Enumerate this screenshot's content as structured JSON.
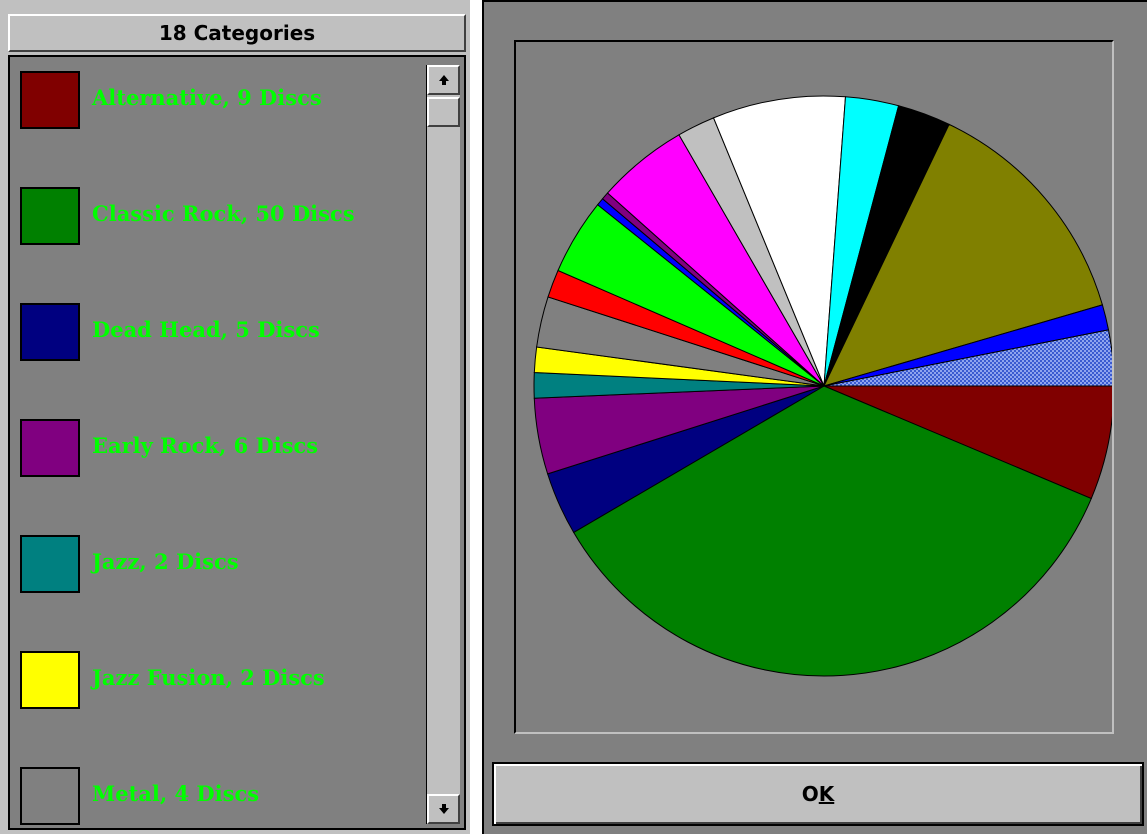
{
  "legend": {
    "header": "18 Categories",
    "items": [
      {
        "label": "Alternative, 9 Discs",
        "color": "#800000"
      },
      {
        "label": "Classic Rock, 50 Discs",
        "color": "#008000"
      },
      {
        "label": "Dead Head, 5 Discs",
        "color": "#000080"
      },
      {
        "label": "Early Rock, 6 Discs",
        "color": "#800080"
      },
      {
        "label": "Jazz, 2 Discs",
        "color": "#008080"
      },
      {
        "label": "Jazz Fusion, 2 Discs",
        "color": "#ffff00"
      },
      {
        "label": "Metal, 4 Discs",
        "color": "#808080"
      }
    ]
  },
  "scrollbar": {
    "up_icon": "arrow-up-icon",
    "down_icon": "arrow-down-icon"
  },
  "dialog": {
    "ok_prefix": "O",
    "ok_accel": "K"
  },
  "chart_data": {
    "type": "pie",
    "slices": [
      {
        "value": 9,
        "color": "#800000"
      },
      {
        "value": 50,
        "color": "#008000"
      },
      {
        "value": 5,
        "color": "#000080"
      },
      {
        "value": 6,
        "color": "#800080"
      },
      {
        "value": 2,
        "color": "#008080"
      },
      {
        "value": 2,
        "color": "#ffff00"
      },
      {
        "value": 4,
        "color": "#808080"
      },
      {
        "value": 2.2,
        "color": "#ff0000"
      },
      {
        "value": 6,
        "color": "#00ff00"
      },
      {
        "value": 0.6,
        "color": "#0000ff"
      },
      {
        "value": 0.6,
        "color": "#800080"
      },
      {
        "value": 7.2,
        "color": "#ff00ff"
      },
      {
        "value": 3,
        "color": "#c0c0c0"
      },
      {
        "value": 10.5,
        "color": "#ffffff"
      },
      {
        "value": 4.2,
        "color": "#00ffff"
      },
      {
        "value": 4.2,
        "color": "#000000"
      },
      {
        "value": 19,
        "color": "#808000"
      },
      {
        "value": 2,
        "color": "#0000ff"
      },
      {
        "value": 4.4,
        "color": "#3a5ad0",
        "pattern": "checker"
      }
    ]
  }
}
